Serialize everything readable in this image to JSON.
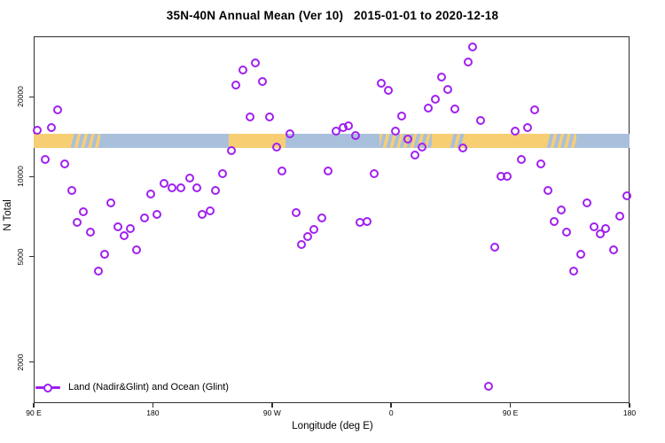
{
  "title": "35N-40N Annual Mean (Ver 10)   2015-01-01 to 2020-12-18",
  "xlabel": "Longitude (deg E)",
  "ylabel": "N Total",
  "legend": {
    "label": "Land (Nadir&Glint) and Ocean (Glint)"
  },
  "colors": {
    "point": "#A020F0",
    "land": "#F8CE73",
    "ocean": "#A9C0DD",
    "axis": "#2f2f2f"
  },
  "chart_data": {
    "type": "scatter",
    "title": "35N-40N Annual Mean (Ver 10)   2015-01-01 to 2020-12-18",
    "xlabel": "Longitude (deg E)",
    "ylabel": "N Total",
    "x_axis": {
      "range": [
        90,
        540
      ],
      "note": "continuous longitude axis travelling eastward from 90E: 180=180, 270=90W, 360=0, 450=90E, 540=180",
      "ticks": [
        {
          "pos": 90,
          "label": "90 E"
        },
        {
          "pos": 180,
          "label": "180"
        },
        {
          "pos": 270,
          "label": "90 W"
        },
        {
          "pos": 360,
          "label": "0"
        },
        {
          "pos": 450,
          "label": "90 E"
        },
        {
          "pos": 540,
          "label": "180"
        }
      ]
    },
    "y_axis": {
      "scale": "log",
      "range": [
        1400,
        33700
      ],
      "ticks": [
        2000,
        5000,
        10000,
        20000
      ]
    },
    "map_band": {
      "n_top": 14500,
      "n_bottom": 12800,
      "segments": [
        {
          "from": 90,
          "to": 118,
          "type": "land"
        },
        {
          "from": 118,
          "to": 140,
          "type": "coast"
        },
        {
          "from": 140,
          "to": 237,
          "type": "ocean"
        },
        {
          "from": 237,
          "to": 280,
          "type": "land"
        },
        {
          "from": 280,
          "to": 351,
          "type": "ocean"
        },
        {
          "from": 351,
          "to": 391,
          "type": "coast"
        },
        {
          "from": 391,
          "to": 405,
          "type": "land"
        },
        {
          "from": 405,
          "to": 416,
          "type": "coast"
        },
        {
          "from": 416,
          "to": 478,
          "type": "land"
        },
        {
          "from": 478,
          "to": 500,
          "type": "coast"
        },
        {
          "from": 500,
          "to": 540,
          "type": "ocean"
        }
      ]
    },
    "series": [
      {
        "name": "Land (Nadir&Glint) and Ocean (Glint)",
        "marker": "open-circle",
        "color": "#A020F0",
        "points": [
          [
            93,
            15000
          ],
          [
            98.5,
            11600
          ],
          [
            103.5,
            15350
          ],
          [
            108,
            17900
          ],
          [
            113.5,
            11200
          ],
          [
            119,
            8840
          ],
          [
            123,
            6700
          ],
          [
            127.5,
            7400
          ],
          [
            133,
            6160
          ],
          [
            139,
            4420
          ],
          [
            143.5,
            5110
          ],
          [
            148,
            7940
          ],
          [
            153.5,
            6450
          ],
          [
            158,
            5980
          ],
          [
            163,
            6350
          ],
          [
            168,
            5290
          ],
          [
            174,
            7010
          ],
          [
            178.5,
            8570
          ],
          [
            183,
            7230
          ],
          [
            188.5,
            9400
          ],
          [
            194.5,
            9050
          ],
          [
            201,
            9100
          ],
          [
            208,
            9850
          ],
          [
            213,
            9050
          ],
          [
            217,
            7180
          ],
          [
            223,
            7460
          ],
          [
            227,
            8900
          ],
          [
            232.5,
            10300
          ],
          [
            239,
            12560
          ],
          [
            243,
            22200
          ],
          [
            248,
            25200
          ],
          [
            253.5,
            16800
          ],
          [
            257.5,
            26800
          ],
          [
            263,
            22800
          ],
          [
            268,
            16800
          ],
          [
            273.5,
            12900
          ],
          [
            277.5,
            10500
          ],
          [
            283.5,
            14500
          ],
          [
            288,
            7300
          ],
          [
            292,
            5530
          ],
          [
            297,
            5930
          ],
          [
            301.5,
            6310
          ],
          [
            307.5,
            7000
          ],
          [
            312.5,
            10500
          ],
          [
            318.5,
            14900
          ],
          [
            323.5,
            15300
          ],
          [
            327.5,
            15500
          ],
          [
            333,
            14250
          ],
          [
            336.5,
            6700
          ],
          [
            342,
            6800
          ],
          [
            347,
            10300
          ],
          [
            352.5,
            22500
          ],
          [
            358,
            21200
          ],
          [
            363,
            14900
          ],
          [
            368,
            16900
          ],
          [
            372.5,
            13900
          ],
          [
            378,
            12100
          ],
          [
            383.5,
            12900
          ],
          [
            388,
            18100
          ],
          [
            393.5,
            19600
          ],
          [
            398,
            23700
          ],
          [
            402.5,
            21400
          ],
          [
            408,
            18000
          ],
          [
            414,
            12800
          ],
          [
            418,
            27000
          ],
          [
            421.5,
            30800
          ],
          [
            427.5,
            16300
          ],
          [
            433.5,
            1620
          ],
          [
            438,
            5440
          ],
          [
            443,
            10000
          ],
          [
            447.5,
            10000
          ],
          [
            453.5,
            14900
          ],
          [
            458.5,
            11600
          ],
          [
            463,
            15300
          ],
          [
            468.5,
            17800
          ],
          [
            473,
            11200
          ],
          [
            478.5,
            8840
          ],
          [
            483,
            6800
          ],
          [
            488.5,
            7500
          ],
          [
            492.5,
            6160
          ],
          [
            498,
            4400
          ],
          [
            503,
            5110
          ],
          [
            508,
            7940
          ],
          [
            513,
            6450
          ],
          [
            518,
            6100
          ],
          [
            522,
            6350
          ],
          [
            528,
            5300
          ],
          [
            532.5,
            7100
          ],
          [
            538,
            8440
          ]
        ]
      }
    ]
  }
}
